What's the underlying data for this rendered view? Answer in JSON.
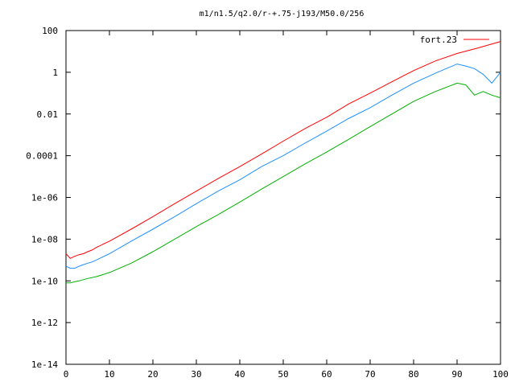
{
  "chart_data": {
    "type": "line",
    "title": "m1/n1.5/q2.0/r-+.75-j193/M50.0/256",
    "xlabel": "",
    "ylabel": "",
    "xlim": [
      0,
      100
    ],
    "ylim": [
      1e-14,
      100
    ],
    "yscale": "log",
    "xticks": [
      "0",
      "10",
      "20",
      "30",
      "40",
      "50",
      "60",
      "70",
      "80",
      "90",
      "100"
    ],
    "yticks": [
      "1e-14",
      "1e-12",
      "1e-10",
      "1e-08",
      "1e-06",
      "0.0001",
      "0.01",
      "1",
      "100"
    ],
    "grid": false,
    "legend": "top-right",
    "series": [
      {
        "name": "fort.23",
        "color": "#ff0000",
        "x": [
          0,
          1,
          2,
          3,
          4,
          5,
          6,
          7,
          10,
          15,
          20,
          25,
          30,
          35,
          40,
          45,
          50,
          55,
          60,
          65,
          70,
          75,
          80,
          85,
          90,
          95,
          100
        ],
        "y": [
          2e-09,
          1.2e-09,
          1.5e-09,
          1.8e-09,
          2e-09,
          2.5e-09,
          3e-09,
          4e-09,
          8e-09,
          3e-08,
          1.2e-07,
          5e-07,
          2e-06,
          8e-06,
          3e-05,
          0.00012,
          0.0005,
          0.002,
          0.007,
          0.03,
          0.1,
          0.35,
          1.2,
          3.5,
          8,
          15,
          30
        ]
      },
      {
        "name": "",
        "color": "#1e90ff",
        "x": [
          0,
          1,
          2,
          3,
          4,
          5,
          6,
          7,
          10,
          15,
          20,
          25,
          30,
          35,
          40,
          45,
          50,
          55,
          60,
          65,
          70,
          75,
          80,
          85,
          90,
          92,
          94,
          96,
          98,
          100
        ],
        "y": [
          5e-10,
          4e-10,
          4e-10,
          5e-10,
          6e-10,
          7e-10,
          8e-10,
          1e-09,
          2e-09,
          8e-09,
          3e-08,
          1.2e-07,
          5e-07,
          2e-06,
          7e-06,
          3e-05,
          0.0001,
          0.0004,
          0.0015,
          0.006,
          0.02,
          0.08,
          0.3,
          0.9,
          2.5,
          2,
          1.5,
          0.8,
          0.3,
          1
        ]
      },
      {
        "name": "",
        "color": "#00b000",
        "x": [
          0,
          1,
          2,
          3,
          5,
          7,
          10,
          15,
          20,
          25,
          30,
          35,
          40,
          45,
          50,
          55,
          60,
          65,
          70,
          75,
          80,
          85,
          90,
          92,
          94,
          96,
          98,
          100
        ],
        "y": [
          8e-11,
          8e-11,
          9e-11,
          1e-10,
          1.3e-10,
          1.6e-10,
          2.5e-10,
          7e-10,
          2.5e-09,
          1e-08,
          4e-08,
          1.5e-07,
          6e-07,
          2.5e-06,
          1e-05,
          4e-05,
          0.00015,
          0.0006,
          0.0025,
          0.01,
          0.04,
          0.12,
          0.3,
          0.25,
          0.08,
          0.12,
          0.08,
          0.06
        ]
      }
    ]
  }
}
